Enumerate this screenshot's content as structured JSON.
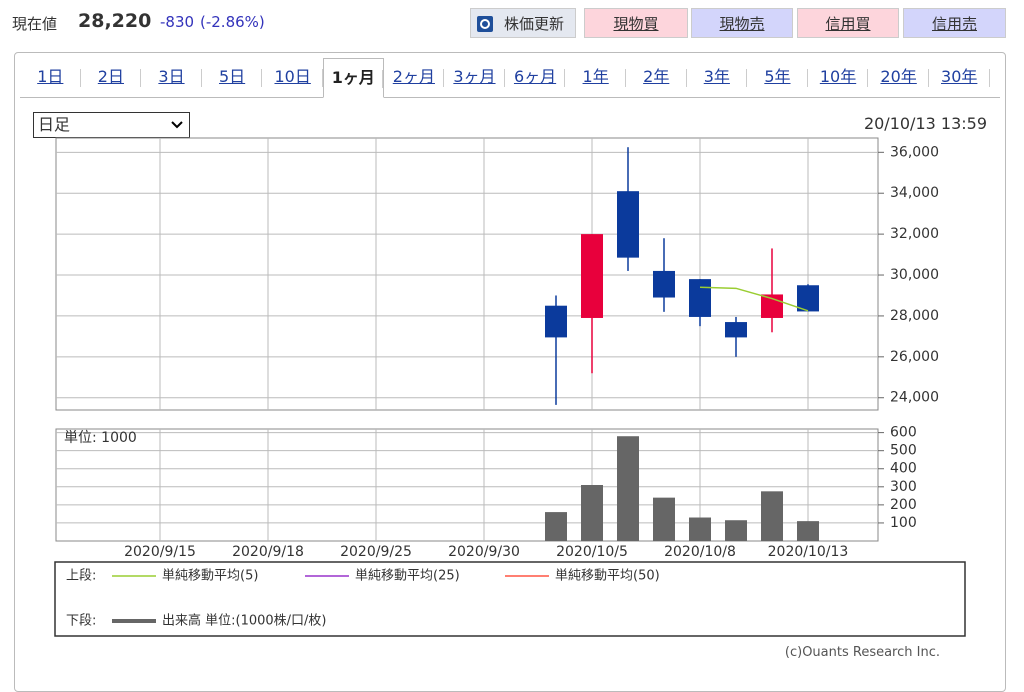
{
  "header": {
    "label": "現在値",
    "price": "28,220",
    "change": "-830",
    "change_pct": "(-2.86%)"
  },
  "buttons": [
    "株価更新",
    "現物買",
    "現物売",
    "信用買",
    "信用売"
  ],
  "tabs": [
    "1日",
    "2日",
    "3日",
    "5日",
    "10日",
    "1ヶ月",
    "2ヶ月",
    "3ヶ月",
    "6ヶ月",
    "1年",
    "2年",
    "3年",
    "5年",
    "10年",
    "20年",
    "30年"
  ],
  "selected_tab": 5,
  "period_select": "日足",
  "timestamp": "20/10/13 13:59",
  "chart_data": [
    {
      "type": "candlestick",
      "open": [
        null,
        null,
        null,
        null,
        null,
        null,
        null,
        null,
        null,
        null,
        null,
        28500,
        27900,
        34100,
        30200,
        29800,
        27700,
        27900,
        29500
      ],
      "high": [
        null,
        null,
        null,
        null,
        null,
        null,
        null,
        null,
        null,
        null,
        null,
        29000,
        32000,
        36250,
        31800,
        29800,
        27950,
        31300,
        29550
      ],
      "low": [
        null,
        null,
        null,
        null,
        null,
        null,
        null,
        null,
        null,
        null,
        null,
        23650,
        25200,
        30200,
        28200,
        27500,
        26000,
        27200,
        28220
      ],
      "close": [
        null,
        null,
        null,
        null,
        null,
        null,
        null,
        null,
        null,
        null,
        null,
        26950,
        32000,
        30850,
        28900,
        27950,
        26950,
        29050,
        28220
      ],
      "up_color": "#e8003c",
      "down_color": "#0b3a9c",
      "legend_label": "上段:",
      "series": [
        {
          "name": "単純移動平均(5)",
          "color": "#9acd32",
          "values": [
            null,
            null,
            null,
            null,
            null,
            null,
            null,
            null,
            null,
            null,
            null,
            null,
            null,
            null,
            null,
            29400,
            29350,
            28850,
            28250
          ]
        },
        {
          "name": "単純移動平均(25)",
          "color": "#9933cc",
          "values": [
            null,
            null,
            null,
            null,
            null,
            null,
            null,
            null,
            null,
            null,
            null,
            null,
            null,
            null,
            null,
            null,
            null,
            null,
            null
          ]
        },
        {
          "name": "単純移動平均(50)",
          "color": "#ff5544",
          "values": [
            null,
            null,
            null,
            null,
            null,
            null,
            null,
            null,
            null,
            null,
            null,
            null,
            null,
            null,
            null,
            null,
            null,
            null,
            null
          ]
        }
      ],
      "ylim": [
        23400,
        36700
      ],
      "yticks": [
        {
          "value": 24000,
          "label": "24,000"
        },
        {
          "value": 26000,
          "label": "26,000"
        },
        {
          "value": 28000,
          "label": "28,000"
        },
        {
          "value": 30000,
          "label": "30,000"
        },
        {
          "value": 32000,
          "label": "32,000"
        },
        {
          "value": 34000,
          "label": "34,000"
        },
        {
          "value": 36000,
          "label": "36,000"
        }
      ],
      "grid": true
    },
    {
      "type": "bar",
      "unit_label": "単位: 1000",
      "legend_label": "下段:",
      "categories": [
        "2020/9/15",
        null,
        null,
        "2020/9/18",
        null,
        null,
        "2020/9/25",
        null,
        null,
        "2020/9/30",
        null,
        null,
        "2020/10/5",
        null,
        null,
        "2020/10/8",
        null,
        null,
        "2020/10/13"
      ],
      "series": [
        {
          "name": "出来高 単位:(1000株/口/枚)",
          "color": "#666666",
          "values": [
            null,
            null,
            null,
            null,
            null,
            null,
            null,
            null,
            null,
            null,
            null,
            160,
            310,
            580,
            240,
            130,
            115,
            275,
            110
          ]
        }
      ],
      "ylim": [
        0,
        620
      ],
      "yticks": [
        100,
        200,
        300,
        400,
        500,
        600
      ],
      "grid": true
    }
  ],
  "copyright": "(c)Ouants Research Inc."
}
